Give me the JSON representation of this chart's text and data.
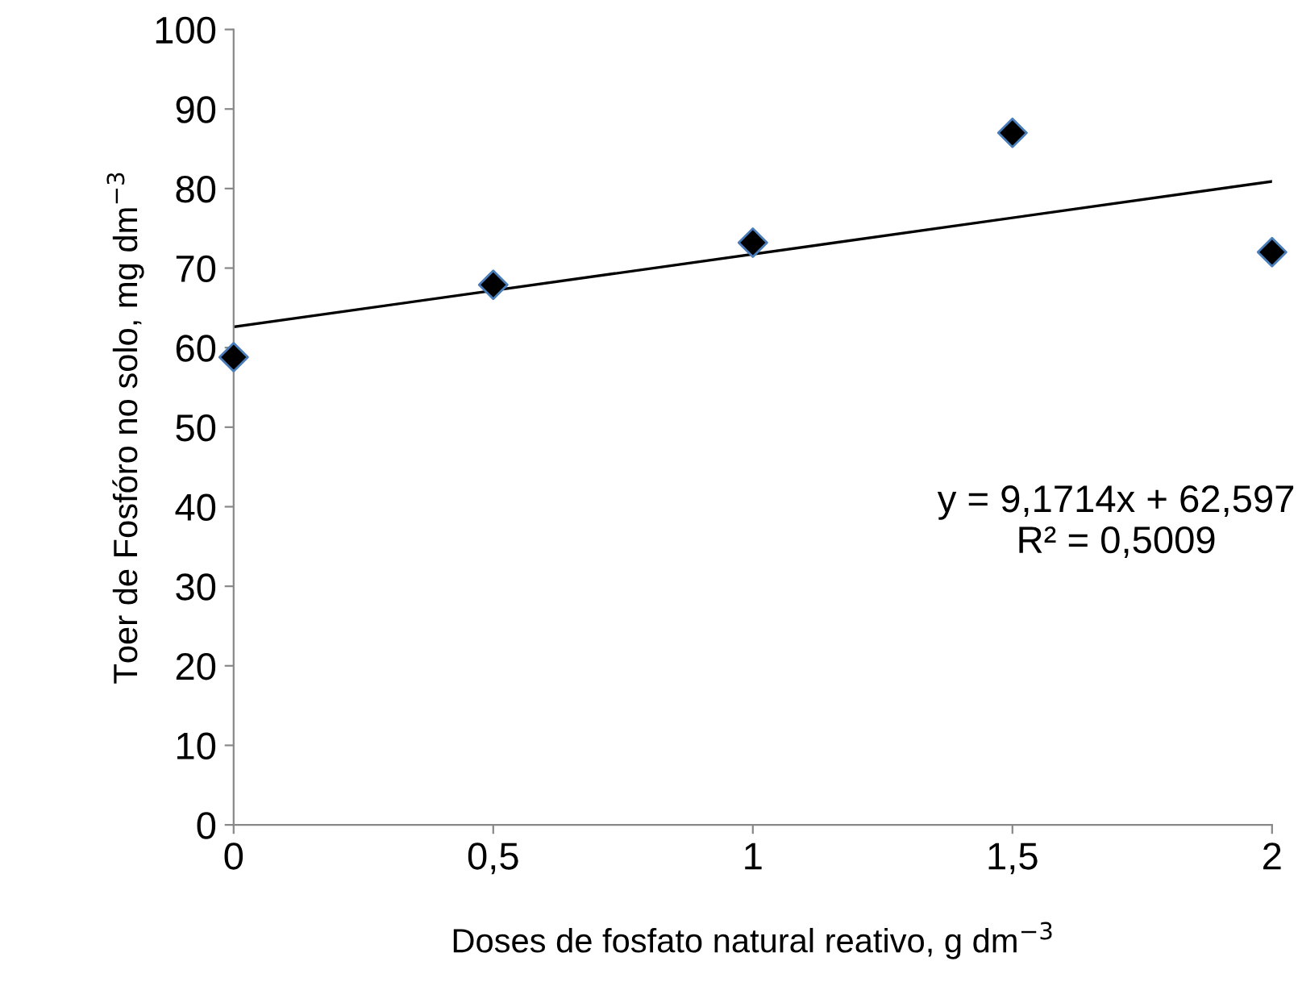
{
  "chart_data": {
    "type": "scatter",
    "xlabel": "Doses de fosfato natural reativo, g dm$^{−3}$",
    "ylabel": "Toer de Fosfóro no solo, mg dm$^{−3}$",
    "series": [
      {
        "color": "#000000",
        "x": [
          0,
          0.5,
          1,
          1.5,
          2
        ],
        "values": [
          58.8,
          67.9,
          73.2,
          87,
          72
        ],
        "marker": "diamond"
      },
      {
        "type": "line",
        "color": "#000000",
        "x": [
          0,
          2
        ],
        "values": [
          62.6,
          80.9
        ],
        "marker": "none",
        "line_style": "solid"
      }
    ],
    "annotations": [
      "y = 9,1714x + 62,597\nR² = 0,5009"
    ],
    "xlim": [
      0,
      2
    ],
    "xticks": [
      0,
      {
        "value": 0.5,
        "label": "0,5"
      },
      1,
      {
        "value": 1.5,
        "label": "1,5"
      },
      2
    ],
    "ylim": [
      0,
      100
    ],
    "yticks": [
      0,
      10,
      20,
      30,
      40,
      50,
      60,
      70,
      80,
      90,
      100
    ],
    "grid": false,
    "legend": false
  }
}
